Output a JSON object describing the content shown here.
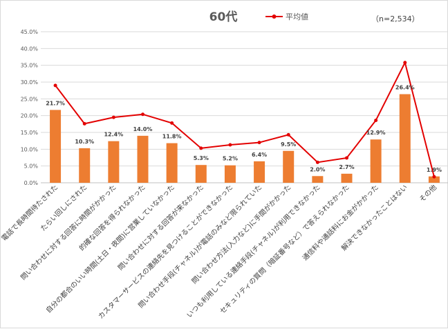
{
  "chart_data": {
    "type": "bar",
    "title": "60代",
    "note": "（n=2,534）",
    "legend": {
      "line_label": "平均値",
      "position": "top"
    },
    "colors": {
      "bar": "#ED7D31",
      "line": "#E30000",
      "grid": "#d9d9d9",
      "axis": "#bfbfbf"
    },
    "ylim": [
      0,
      45
    ],
    "ytick_step": 5,
    "ytick_labels": [
      "0.0%",
      "5.0%",
      "10.0%",
      "15.0%",
      "20.0%",
      "25.0%",
      "30.0%",
      "35.0%",
      "40.0%",
      "45.0%"
    ],
    "grid": true,
    "categories": [
      "電話で長時間待たされた",
      "たらい回しにされた",
      "問い合わせに対する回答に時間がかかった",
      "的確な回答を得られなかった",
      "自分の都合のいい時間(土日・夜間)に営業していなかった",
      "問い合わせに対する回答が来なかった",
      "カスタマーサービスの連絡先を見つけることができなかった",
      "問い合わせ手段(チャネル)が電話のみなど限られていた",
      "問い合わせ方法(入力など)に手間がかかった",
      "いつも利用している連絡手段(チャネル)が利用できなかった",
      "セキュリティの質問（暗証番号など）で答えられなかった",
      "通信料や通話料にお金がかかった",
      "解決できなかったことはない",
      "その他"
    ],
    "series": [
      {
        "type": "bar",
        "values": [
          21.7,
          10.3,
          12.4,
          14.0,
          11.8,
          5.3,
          5.2,
          6.4,
          9.5,
          2.0,
          2.7,
          12.9,
          26.4,
          1.9
        ],
        "labels": [
          "21.7%",
          "10.3%",
          "12.4%",
          "14.0%",
          "11.8%",
          "5.3%",
          "5.2%",
          "6.4%",
          "9.5%",
          "2.0%",
          "2.7%",
          "12.9%",
          "26.4%",
          "1.9%"
        ]
      },
      {
        "type": "line",
        "name": "平均値",
        "values": [
          29.0,
          17.6,
          19.5,
          20.4,
          17.8,
          10.3,
          11.3,
          12.0,
          14.3,
          6.1,
          7.4,
          18.6,
          35.8,
          1.8
        ]
      }
    ]
  }
}
